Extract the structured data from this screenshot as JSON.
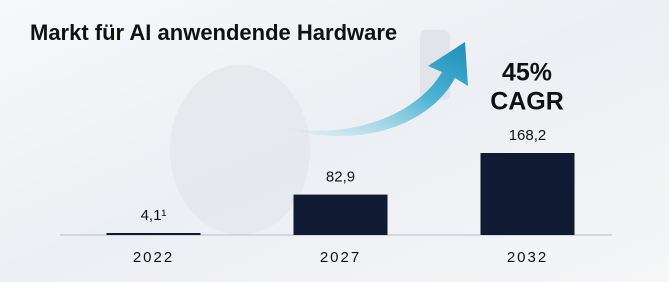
{
  "chart_data": {
    "type": "bar",
    "title": "Markt für AI anwendende Hardware",
    "categories": [
      "2022",
      "2027",
      "2032"
    ],
    "values": [
      4.1,
      82.9,
      168.2
    ],
    "value_labels": [
      "4,1¹",
      "82,9",
      "168,2"
    ],
    "color": "#111a33",
    "annotations": [
      "45%",
      "CAGR"
    ]
  }
}
